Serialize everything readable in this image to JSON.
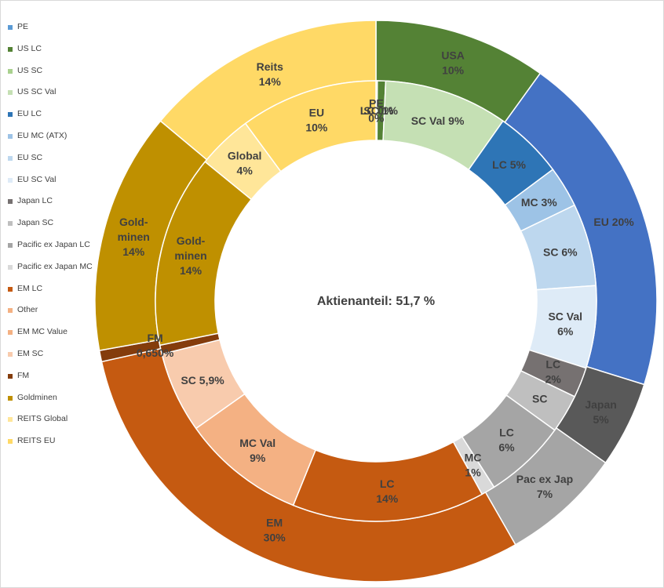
{
  "chart_data": {
    "type": "doughnut",
    "center_text": "Aktienanteil: 51,7 %",
    "legend": [
      {
        "name": "PE",
        "color": "#5b9bd5"
      },
      {
        "name": "US LC",
        "color": "#548235"
      },
      {
        "name": "US SC",
        "color": "#a9d18e"
      },
      {
        "name": "US SC Val",
        "color": "#c5e0b4"
      },
      {
        "name": "EU LC",
        "color": "#2e75b6"
      },
      {
        "name": "EU MC (ATX)",
        "color": "#9dc3e6"
      },
      {
        "name": "EU SC",
        "color": "#bdd7ee"
      },
      {
        "name": "EU SC Val",
        "color": "#deebf7"
      },
      {
        "name": "Japan LC",
        "color": "#767171"
      },
      {
        "name": "Japan SC",
        "color": "#bfbfbf"
      },
      {
        "name": "Pacific ex Japan LC",
        "color": "#a5a5a5"
      },
      {
        "name": "Pacific ex Japan MC",
        "color": "#d9d9d9"
      },
      {
        "name": "EM LC",
        "color": "#c55a11"
      },
      {
        "name": "Other",
        "color": "#f4b183"
      },
      {
        "name": "EM MC Value",
        "color": "#f4b183"
      },
      {
        "name": "EM SC",
        "color": "#f8cbad"
      },
      {
        "name": "FM",
        "color": "#843c0c"
      },
      {
        "name": "Goldminen",
        "color": "#bf9000"
      },
      {
        "name": "REITS Global",
        "color": "#ffe699"
      },
      {
        "name": "REITS EU",
        "color": "#ffd966"
      }
    ],
    "outer_ring": [
      {
        "name": "USA",
        "label": [
          "USA",
          "10%"
        ],
        "value": 10,
        "color": "#548235"
      },
      {
        "name": "EU",
        "label": [
          "EU 20%"
        ],
        "value": 20,
        "color": "#4472c4"
      },
      {
        "name": "Japan",
        "label": [
          "Japan",
          "5%"
        ],
        "value": 5,
        "color": "#595959"
      },
      {
        "name": "Pac ex Jap",
        "label": [
          "Pac ex Jap",
          "7%"
        ],
        "value": 7,
        "color": "#a5a5a5"
      },
      {
        "name": "EM",
        "label": [
          "EM",
          "30%"
        ],
        "value": 30,
        "color": "#c55a11"
      },
      {
        "name": "FM",
        "label": [
          "FM",
          "0,650%"
        ],
        "value": 0.65,
        "color": "#843c0c"
      },
      {
        "name": "Goldminen",
        "label": [
          "Gold-",
          "minen",
          "14%"
        ],
        "value": 14,
        "color": "#bf9000"
      },
      {
        "name": "Reits",
        "label": [
          "Reits",
          "14%"
        ],
        "value": 14,
        "color": "#ffd966"
      }
    ],
    "inner_ring": [
      {
        "name": "PE",
        "label": [
          "PE",
          "0%"
        ],
        "value": 0.05,
        "color": "#5b9bd5"
      },
      {
        "name": "US LC",
        "label": [
          "LC 0%"
        ],
        "value": 0.05,
        "color": "#548235"
      },
      {
        "name": "US SC",
        "label": [
          "SC 1%"
        ],
        "value": 0.6,
        "color": "#548235"
      },
      {
        "name": "US SC Val",
        "label": [
          "SC Val 9%"
        ],
        "value": 9,
        "color": "#c5e0b4"
      },
      {
        "name": "EU LC",
        "label": [
          "LC 5%"
        ],
        "value": 5,
        "color": "#2e75b6"
      },
      {
        "name": "EU MC (ATX)",
        "label": [
          "MC 3%"
        ],
        "value": 3,
        "color": "#9dc3e6"
      },
      {
        "name": "EU SC",
        "label": [
          "SC 6%"
        ],
        "value": 6,
        "color": "#bdd7ee"
      },
      {
        "name": "EU SC Val",
        "label": [
          "SC Val",
          "6%"
        ],
        "value": 6,
        "color": "#deebf7"
      },
      {
        "name": "Japan LC",
        "label": [
          "LC",
          "2%"
        ],
        "value": 2.2,
        "color": "#767171"
      },
      {
        "name": "Japan SC",
        "label": [
          "SC"
        ],
        "value": 2.8,
        "color": "#bfbfbf"
      },
      {
        "name": "Pacific ex Japan LC",
        "label": [
          "LC",
          "6%"
        ],
        "value": 6,
        "color": "#a5a5a5"
      },
      {
        "name": "Pacific ex Japan MC",
        "label": [
          "MC",
          "1%"
        ],
        "value": 1,
        "color": "#d9d9d9"
      },
      {
        "name": "EM LC",
        "label": [
          "LC",
          "14%"
        ],
        "value": 14,
        "color": "#c55a11"
      },
      {
        "name": "EM MC Value",
        "label": [
          "MC Val",
          "9%"
        ],
        "value": 9,
        "color": "#f4b183"
      },
      {
        "name": "EM SC",
        "label": [
          "SC 5,9%"
        ],
        "value": 5.9,
        "color": "#f8cbad"
      },
      {
        "name": "FM",
        "label": [],
        "value": 0.65,
        "color": "#843c0c"
      },
      {
        "name": "Goldminen",
        "label": [
          "Gold-",
          "minen",
          "14%"
        ],
        "value": 14,
        "color": "#bf9000"
      },
      {
        "name": "REITS Global",
        "label": [
          "Global",
          "4%"
        ],
        "value": 4,
        "color": "#ffe699"
      },
      {
        "name": "REITS EU",
        "label": [
          "EU",
          "10%"
        ],
        "value": 10,
        "color": "#ffd966"
      }
    ]
  }
}
